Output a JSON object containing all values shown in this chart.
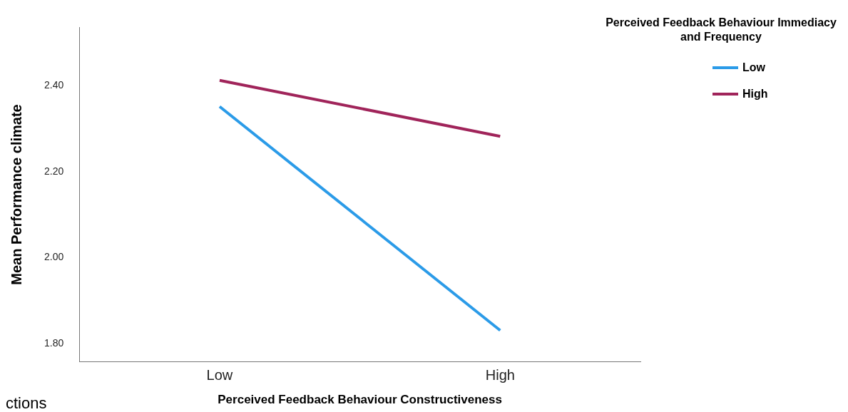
{
  "chart_data": {
    "type": "line",
    "xlabel": "Perceived Feedback Behaviour Constructiveness",
    "ylabel": "Mean Performance climate",
    "legend_title": "Perceived Feedback Behaviour Immediacy and Frequency",
    "categories": [
      "Low",
      "High"
    ],
    "series": [
      {
        "name": "Low",
        "color": "#2b9be8",
        "values": [
          2.351,
          1.831
        ]
      },
      {
        "name": "High",
        "color": "#a0245a",
        "values": [
          2.412,
          2.282
        ]
      }
    ],
    "ylim": [
      1.758,
      2.535
    ],
    "yticks": [
      {
        "value": 1.8,
        "label": "1.80"
      },
      {
        "value": 2.0,
        "label": "2.00"
      },
      {
        "value": 2.2,
        "label": "2.20"
      },
      {
        "value": 2.4,
        "label": "2.40"
      }
    ],
    "grid": false,
    "legend": "top right",
    "marker": "none",
    "line_style": "solid",
    "annotations": [
      "ctions"
    ]
  }
}
